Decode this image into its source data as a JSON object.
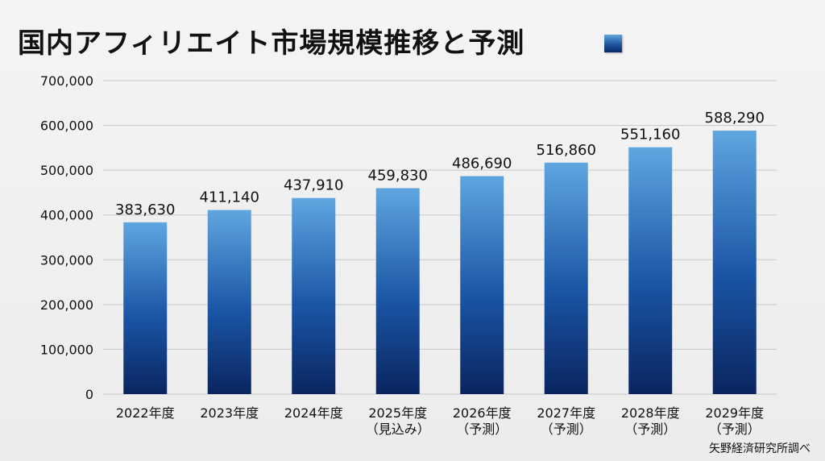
{
  "chart_data": {
    "type": "bar",
    "title": "国内アフィリエイト市場規模推移と予測",
    "categories": [
      [
        "2022年度"
      ],
      [
        "2023年度"
      ],
      [
        "2024年度"
      ],
      [
        "2025年度",
        "（見込み）"
      ],
      [
        "2026年度",
        "（予測）"
      ],
      [
        "2027年度",
        "（予測）"
      ],
      [
        "2028年度",
        "（予測）"
      ],
      [
        "2029年度",
        "（予測）"
      ]
    ],
    "values": [
      383630,
      411140,
      437910,
      459830,
      486690,
      516860,
      551160,
      588290
    ],
    "value_labels": [
      "383,630",
      "411,140",
      "437,910",
      "459,830",
      "486,690",
      "516,860",
      "551,160",
      "588,290"
    ],
    "yticks": [
      "0",
      "100,000",
      "200,000",
      "300,000",
      "400,000",
      "500,000",
      "600,000",
      "700,000"
    ],
    "ylim": [
      0,
      700000
    ],
    "xlabel": "",
    "ylabel": "",
    "grid": true,
    "legend": "top-right of title",
    "bar_color_top": "#5fa6e0",
    "bar_color_bottom": "#0a2560"
  },
  "source": "矢野経済研究所調べ"
}
